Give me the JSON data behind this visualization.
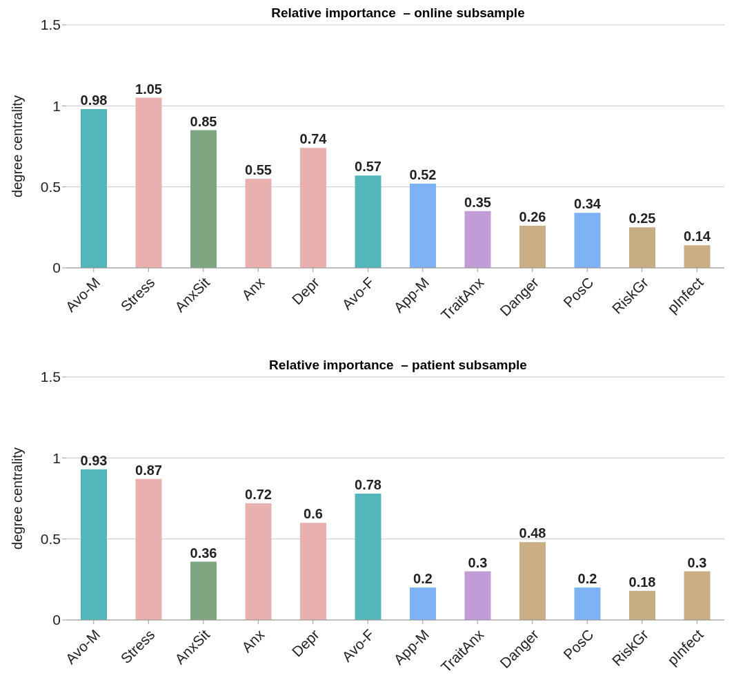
{
  "chart_data": [
    {
      "type": "bar",
      "title": "Relative importance  – online subsample",
      "ylabel": "degree centrality",
      "categories": [
        "Avo-M",
        "Stress",
        "AnxSit",
        "Anx",
        "Depr",
        "Avo-F",
        "App-M",
        "TraitAnx",
        "Danger",
        "PosC",
        "RiskGr",
        "pInfect"
      ],
      "values": [
        0.98,
        1.05,
        0.85,
        0.55,
        0.74,
        0.57,
        0.52,
        0.35,
        0.26,
        0.34,
        0.25,
        0.14
      ],
      "colors": [
        "#52b6ba",
        "#e8b1b0",
        "#7fa681",
        "#e8b1b0",
        "#e8b1b0",
        "#52b6ba",
        "#7db3f5",
        "#c19cd6",
        "#cbae83",
        "#7db3f5",
        "#c5ae83",
        "#cbae83"
      ],
      "ylim": [
        0,
        1.5
      ],
      "yticks": [
        0,
        0.5,
        1,
        1.5
      ],
      "grid": "y",
      "data_labels": true
    },
    {
      "type": "bar",
      "title": "Relative importance  – patient subsample",
      "ylabel": "degree centrality",
      "categories": [
        "Avo-M",
        "Stress",
        "AnxSit",
        "Anx",
        "Depr",
        "Avo-F",
        "App-M",
        "TraitAnx",
        "Danger",
        "PosC",
        "RiskGr",
        "pInfect"
      ],
      "values": [
        0.93,
        0.87,
        0.36,
        0.72,
        0.6,
        0.78,
        0.2,
        0.3,
        0.48,
        0.2,
        0.18,
        0.3
      ],
      "colors": [
        "#52b6ba",
        "#e8b1b0",
        "#7fa681",
        "#e8b1b0",
        "#e8b1b0",
        "#52b6ba",
        "#7db3f5",
        "#c19cd6",
        "#cbae83",
        "#7db3f5",
        "#c5ae83",
        "#cbae83"
      ],
      "ylim": [
        0,
        1.5
      ],
      "yticks": [
        0,
        0.5,
        1,
        1.5
      ],
      "grid": "y",
      "data_labels": true
    }
  ]
}
